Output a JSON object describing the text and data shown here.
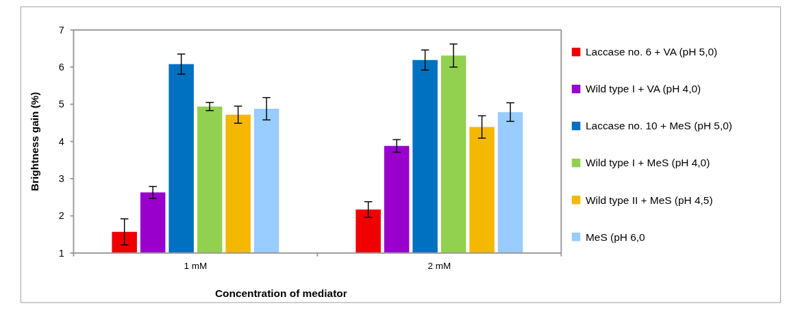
{
  "chart_data": {
    "type": "bar",
    "xlabel": "Concentration of mediator",
    "ylabel": "Brightness gain (%)",
    "categories": [
      "1 mM",
      "2 mM"
    ],
    "ylim": [
      1,
      7
    ],
    "yticks": [
      1,
      2,
      3,
      4,
      5,
      6,
      7
    ],
    "grid": false,
    "legend": "right",
    "series": [
      {
        "name": "Laccase no. 6 + VA (pH 5,0)",
        "color": "#f00000",
        "values": [
          1.57,
          2.17
        ],
        "errors": [
          0.35,
          0.21
        ]
      },
      {
        "name": "Wild type I + VA (pH 4,0)",
        "color": "#9900cc",
        "values": [
          2.63,
          3.88
        ],
        "errors": [
          0.16,
          0.17
        ]
      },
      {
        "name": "Laccase no. 10 + MeS (pH 5,0)",
        "color": "#0070c0",
        "values": [
          6.08,
          6.19
        ],
        "errors": [
          0.27,
          0.27
        ]
      },
      {
        "name": "Wild type I + MeS (pH 4,0)",
        "color": "#92d050",
        "values": [
          4.94,
          6.31
        ],
        "errors": [
          0.11,
          0.31
        ]
      },
      {
        "name": "Wild type II + MeS (pH 4,5)",
        "color": "#f5b800",
        "values": [
          4.72,
          4.39
        ],
        "errors": [
          0.23,
          0.3
        ]
      },
      {
        "name": "MeS (pH 6,0",
        "color": "#99ccff",
        "values": [
          4.88,
          4.79
        ],
        "errors": [
          0.3,
          0.25
        ]
      }
    ]
  }
}
